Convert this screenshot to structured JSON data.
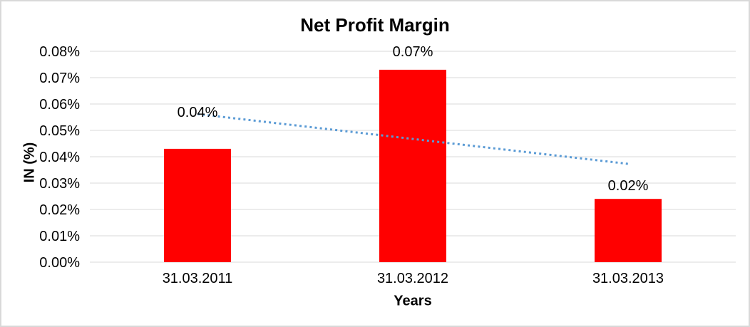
{
  "window": {
    "background": "#ffffff",
    "frame_border_color": "#d9d9d9"
  },
  "chart_data": {
    "type": "bar",
    "title": "Net Profit Margin",
    "xlabel": "Years",
    "ylabel": "IN (%)",
    "categories": [
      "31.03.2011",
      "31.03.2012",
      "31.03.2013"
    ],
    "values": [
      0.043,
      0.073,
      0.024
    ],
    "data_labels": [
      "0.04%",
      "0.07%",
      "0.02%"
    ],
    "y_tick_labels": [
      "0.00%",
      "0.01%",
      "0.02%",
      "0.03%",
      "0.04%",
      "0.05%",
      "0.06%",
      "0.07%",
      "0.08%"
    ],
    "y_tick_values": [
      0.0,
      0.01,
      0.02,
      0.03,
      0.04,
      0.05,
      0.06,
      0.07,
      0.08
    ],
    "ylim": [
      0.0,
      0.08
    ],
    "grid": true,
    "legend": "none",
    "bar_color": "#ff0000",
    "gridline_color": "#d9d9d9",
    "text_color": "#000000",
    "trendline": {
      "type": "linear",
      "style": "dotted",
      "color": "#5b9bd5",
      "start_value": 0.0562,
      "end_value": 0.0373
    }
  }
}
